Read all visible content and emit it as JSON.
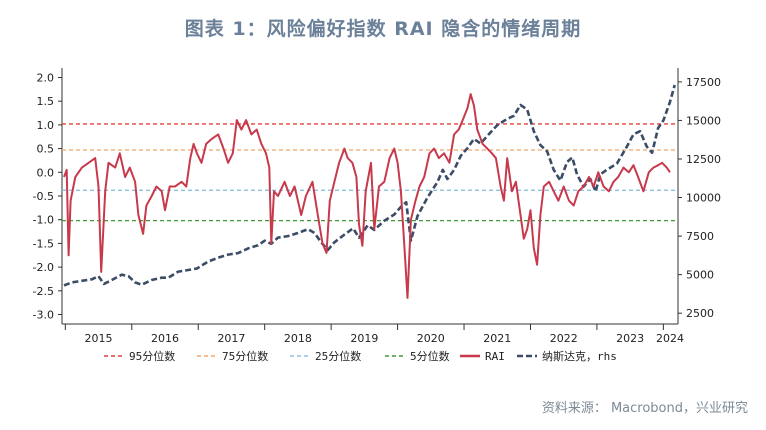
{
  "title": "图表 1：风险偏好指数 RAI 隐含的情绪周期",
  "source": "资料来源：  Macrobond，兴业研究",
  "chart_data": {
    "type": "line",
    "x_ticks": [
      "2015",
      "2016",
      "2017",
      "2018",
      "2019",
      "2020",
      "2021",
      "2022",
      "2023",
      "2024"
    ],
    "left_axis": {
      "ticks": [
        "2.0",
        "1.5",
        "1.0",
        "0.5",
        "0.0",
        "-0.5",
        "-1.0",
        "-1.5",
        "-2.0",
        "-2.5",
        "-3.0"
      ],
      "ylim": [
        -3.2,
        2.2
      ]
    },
    "right_axis": {
      "ticks": [
        "17500",
        "15000",
        "12500",
        "10000",
        "7500",
        "5000",
        "2500"
      ],
      "ylim": [
        1800,
        18400
      ],
      "label": "rhs"
    },
    "reference_lines": [
      {
        "name": "95分位数",
        "value": 1.02,
        "color": "#e0413a"
      },
      {
        "name": "75分位数",
        "value": 0.47,
        "color": "#f0a868"
      },
      {
        "name": "25分位数",
        "value": -0.38,
        "color": "#8cc3e0"
      },
      {
        "name": "5分位数",
        "value": -1.02,
        "color": "#3d9a3a"
      }
    ],
    "series": [
      {
        "name": "RAI",
        "axis": "left",
        "color": "#c8394c",
        "points": [
          [
            2014.98,
            -0.1
          ],
          [
            2015.02,
            0.05
          ],
          [
            2015.05,
            -1.75
          ],
          [
            2015.08,
            -0.6
          ],
          [
            2015.15,
            -0.1
          ],
          [
            2015.25,
            0.1
          ],
          [
            2015.35,
            0.2
          ],
          [
            2015.45,
            0.3
          ],
          [
            2015.5,
            -0.3
          ],
          [
            2015.54,
            -2.1
          ],
          [
            2015.6,
            -0.4
          ],
          [
            2015.65,
            0.2
          ],
          [
            2015.75,
            0.1
          ],
          [
            2015.82,
            0.4
          ],
          [
            2015.9,
            -0.1
          ],
          [
            2015.97,
            0.1
          ],
          [
            2016.05,
            -0.2
          ],
          [
            2016.1,
            -0.9
          ],
          [
            2016.17,
            -1.3
          ],
          [
            2016.22,
            -0.7
          ],
          [
            2016.3,
            -0.5
          ],
          [
            2016.37,
            -0.3
          ],
          [
            2016.45,
            -0.4
          ],
          [
            2016.5,
            -0.8
          ],
          [
            2016.57,
            -0.3
          ],
          [
            2016.65,
            -0.3
          ],
          [
            2016.75,
            -0.2
          ],
          [
            2016.82,
            -0.3
          ],
          [
            2016.88,
            0.3
          ],
          [
            2016.93,
            0.6
          ],
          [
            2016.98,
            0.4
          ],
          [
            2017.05,
            0.2
          ],
          [
            2017.12,
            0.6
          ],
          [
            2017.2,
            0.7
          ],
          [
            2017.3,
            0.8
          ],
          [
            2017.38,
            0.5
          ],
          [
            2017.45,
            0.2
          ],
          [
            2017.52,
            0.4
          ],
          [
            2017.58,
            1.1
          ],
          [
            2017.65,
            0.9
          ],
          [
            2017.72,
            1.1
          ],
          [
            2017.8,
            0.8
          ],
          [
            2017.88,
            0.9
          ],
          [
            2017.95,
            0.6
          ],
          [
            2018.02,
            0.4
          ],
          [
            2018.07,
            0.1
          ],
          [
            2018.1,
            -1.5
          ],
          [
            2018.14,
            -0.4
          ],
          [
            2018.2,
            -0.5
          ],
          [
            2018.3,
            -0.2
          ],
          [
            2018.38,
            -0.5
          ],
          [
            2018.45,
            -0.3
          ],
          [
            2018.55,
            -0.9
          ],
          [
            2018.62,
            -0.5
          ],
          [
            2018.72,
            -0.2
          ],
          [
            2018.8,
            -0.9
          ],
          [
            2018.87,
            -1.5
          ],
          [
            2018.93,
            -1.7
          ],
          [
            2018.98,
            -0.6
          ],
          [
            2019.05,
            -0.2
          ],
          [
            2019.12,
            0.2
          ],
          [
            2019.2,
            0.5
          ],
          [
            2019.25,
            0.3
          ],
          [
            2019.32,
            0.2
          ],
          [
            2019.38,
            -0.1
          ],
          [
            2019.42,
            -1.1
          ],
          [
            2019.47,
            -1.55
          ],
          [
            2019.52,
            -0.4
          ],
          [
            2019.6,
            0.2
          ],
          [
            2019.65,
            -1.2
          ],
          [
            2019.72,
            -0.3
          ],
          [
            2019.8,
            -0.2
          ],
          [
            2019.88,
            0.3
          ],
          [
            2019.95,
            0.5
          ],
          [
            2020.0,
            0.2
          ],
          [
            2020.05,
            -0.4
          ],
          [
            2020.1,
            -1.5
          ],
          [
            2020.15,
            -2.65
          ],
          [
            2020.2,
            -1.0
          ],
          [
            2020.27,
            -0.6
          ],
          [
            2020.33,
            -0.3
          ],
          [
            2020.4,
            -0.1
          ],
          [
            2020.48,
            0.4
          ],
          [
            2020.55,
            0.5
          ],
          [
            2020.62,
            0.3
          ],
          [
            2020.7,
            0.4
          ],
          [
            2020.78,
            0.2
          ],
          [
            2020.85,
            0.8
          ],
          [
            2020.92,
            0.9
          ],
          [
            2020.98,
            1.1
          ],
          [
            2021.05,
            1.35
          ],
          [
            2021.1,
            1.65
          ],
          [
            2021.15,
            1.4
          ],
          [
            2021.2,
            0.9
          ],
          [
            2021.28,
            0.6
          ],
          [
            2021.35,
            0.5
          ],
          [
            2021.42,
            0.4
          ],
          [
            2021.48,
            0.3
          ],
          [
            2021.55,
            -0.3
          ],
          [
            2021.6,
            -0.6
          ],
          [
            2021.65,
            0.3
          ],
          [
            2021.72,
            -0.4
          ],
          [
            2021.78,
            -0.2
          ],
          [
            2021.85,
            -0.9
          ],
          [
            2021.9,
            -1.4
          ],
          [
            2021.95,
            -1.2
          ],
          [
            2022.0,
            -0.8
          ],
          [
            2022.05,
            -1.6
          ],
          [
            2022.1,
            -1.95
          ],
          [
            2022.15,
            -0.9
          ],
          [
            2022.2,
            -0.3
          ],
          [
            2022.28,
            -0.2
          ],
          [
            2022.35,
            -0.4
          ],
          [
            2022.42,
            -0.6
          ],
          [
            2022.5,
            -0.3
          ],
          [
            2022.58,
            -0.6
          ],
          [
            2022.65,
            -0.7
          ],
          [
            2022.72,
            -0.4
          ],
          [
            2022.8,
            -0.3
          ],
          [
            2022.88,
            -0.1
          ],
          [
            2022.95,
            -0.3
          ],
          [
            2023.02,
            0.0
          ],
          [
            2023.1,
            -0.3
          ],
          [
            2023.18,
            -0.4
          ],
          [
            2023.25,
            -0.2
          ],
          [
            2023.32,
            -0.1
          ],
          [
            2023.4,
            0.1
          ],
          [
            2023.48,
            0.0
          ],
          [
            2023.55,
            0.15
          ],
          [
            2023.62,
            -0.1
          ],
          [
            2023.7,
            -0.4
          ],
          [
            2023.78,
            0.0
          ],
          [
            2023.85,
            0.1
          ],
          [
            2023.92,
            0.15
          ],
          [
            2023.98,
            0.2
          ],
          [
            2024.05,
            0.1
          ],
          [
            2024.1,
            0.0
          ]
        ]
      },
      {
        "name": "纳斯达克，rhs",
        "axis": "right",
        "color": "#3b4c66",
        "points": [
          [
            2014.98,
            4300
          ],
          [
            2015.1,
            4500
          ],
          [
            2015.25,
            4600
          ],
          [
            2015.4,
            4700
          ],
          [
            2015.5,
            4900
          ],
          [
            2015.58,
            4400
          ],
          [
            2015.7,
            4650
          ],
          [
            2015.85,
            5000
          ],
          [
            2015.95,
            4900
          ],
          [
            2016.05,
            4500
          ],
          [
            2016.15,
            4350
          ],
          [
            2016.3,
            4650
          ],
          [
            2016.45,
            4800
          ],
          [
            2016.55,
            4800
          ],
          [
            2016.7,
            5200
          ],
          [
            2016.85,
            5300
          ],
          [
            2016.98,
            5400
          ],
          [
            2017.15,
            5850
          ],
          [
            2017.3,
            6100
          ],
          [
            2017.45,
            6300
          ],
          [
            2017.6,
            6400
          ],
          [
            2017.75,
            6700
          ],
          [
            2017.9,
            6900
          ],
          [
            2018.0,
            7200
          ],
          [
            2018.1,
            7000
          ],
          [
            2018.2,
            7400
          ],
          [
            2018.35,
            7500
          ],
          [
            2018.5,
            7700
          ],
          [
            2018.65,
            7950
          ],
          [
            2018.75,
            7700
          ],
          [
            2018.85,
            7100
          ],
          [
            2018.95,
            6600
          ],
          [
            2019.05,
            7100
          ],
          [
            2019.2,
            7600
          ],
          [
            2019.33,
            8000
          ],
          [
            2019.42,
            7400
          ],
          [
            2019.55,
            8200
          ],
          [
            2019.65,
            7900
          ],
          [
            2019.8,
            8500
          ],
          [
            2019.95,
            8900
          ],
          [
            2020.05,
            9400
          ],
          [
            2020.13,
            9700
          ],
          [
            2020.2,
            7200
          ],
          [
            2020.3,
            8800
          ],
          [
            2020.45,
            10000
          ],
          [
            2020.6,
            11000
          ],
          [
            2020.68,
            11800
          ],
          [
            2020.75,
            11200
          ],
          [
            2020.85,
            11800
          ],
          [
            2020.95,
            12700
          ],
          [
            2021.05,
            13200
          ],
          [
            2021.15,
            13800
          ],
          [
            2021.25,
            13500
          ],
          [
            2021.35,
            14000
          ],
          [
            2021.5,
            14700
          ],
          [
            2021.65,
            15100
          ],
          [
            2021.75,
            15300
          ],
          [
            2021.85,
            16000
          ],
          [
            2021.95,
            15700
          ],
          [
            2022.05,
            14300
          ],
          [
            2022.15,
            13400
          ],
          [
            2022.25,
            13000
          ],
          [
            2022.35,
            11800
          ],
          [
            2022.45,
            11100
          ],
          [
            2022.55,
            12300
          ],
          [
            2022.63,
            12600
          ],
          [
            2022.7,
            11500
          ],
          [
            2022.8,
            10700
          ],
          [
            2022.9,
            11200
          ],
          [
            2022.98,
            10400
          ],
          [
            2023.05,
            11500
          ],
          [
            2023.15,
            11800
          ],
          [
            2023.3,
            12200
          ],
          [
            2023.45,
            13300
          ],
          [
            2023.55,
            14100
          ],
          [
            2023.65,
            14300
          ],
          [
            2023.75,
            13300
          ],
          [
            2023.83,
            12900
          ],
          [
            2023.92,
            14500
          ],
          [
            2024.0,
            15000
          ],
          [
            2024.1,
            16200
          ],
          [
            2024.17,
            17300
          ]
        ]
      }
    ]
  }
}
